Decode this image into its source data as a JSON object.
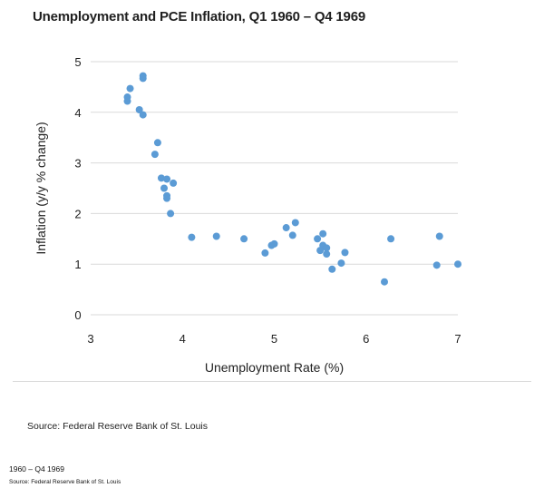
{
  "title": "Unemployment and PCE Inflation, Q1 1960 – Q4 1969",
  "source_text": "Source:  Federal Reserve Bank of St. Louis",
  "footer": {
    "range": "1960 – Q4 1969",
    "source": "Source:  Federal Reserve Bank of St. Louis"
  },
  "colors": {
    "marker": "#5b9bd5",
    "grid": "#d9d9d9"
  },
  "chart_data": {
    "type": "scatter",
    "title": "Unemployment and PCE Inflation, Q1 1960 – Q4 1969",
    "xlabel": "Unemployment Rate (%)",
    "ylabel": "Inflation (y/y % change)",
    "xlim": [
      3,
      7
    ],
    "ylim": [
      0,
      5
    ],
    "xticks": [
      "3",
      "4",
      "5",
      "6",
      "7"
    ],
    "yticks": [
      "0",
      "1",
      "2",
      "3",
      "4",
      "5"
    ],
    "grid": "horizontal",
    "points": [
      {
        "x": 3.4,
        "y": 4.3
      },
      {
        "x": 3.4,
        "y": 4.22
      },
      {
        "x": 3.43,
        "y": 4.47
      },
      {
        "x": 3.57,
        "y": 4.72
      },
      {
        "x": 3.57,
        "y": 4.67
      },
      {
        "x": 3.53,
        "y": 4.05
      },
      {
        "x": 3.57,
        "y": 3.95
      },
      {
        "x": 3.73,
        "y": 3.4
      },
      {
        "x": 3.7,
        "y": 3.17
      },
      {
        "x": 3.77,
        "y": 2.7
      },
      {
        "x": 3.83,
        "y": 2.68
      },
      {
        "x": 3.9,
        "y": 2.6
      },
      {
        "x": 3.8,
        "y": 2.5
      },
      {
        "x": 3.83,
        "y": 2.35
      },
      {
        "x": 3.83,
        "y": 2.3
      },
      {
        "x": 3.87,
        "y": 2.0
      },
      {
        "x": 4.1,
        "y": 1.53
      },
      {
        "x": 4.37,
        "y": 1.55
      },
      {
        "x": 4.67,
        "y": 1.5
      },
      {
        "x": 4.9,
        "y": 1.22
      },
      {
        "x": 4.97,
        "y": 1.37
      },
      {
        "x": 5.0,
        "y": 1.4
      },
      {
        "x": 5.13,
        "y": 1.72
      },
      {
        "x": 5.23,
        "y": 1.82
      },
      {
        "x": 5.2,
        "y": 1.57
      },
      {
        "x": 5.47,
        "y": 1.5
      },
      {
        "x": 5.53,
        "y": 1.6
      },
      {
        "x": 5.53,
        "y": 1.37
      },
      {
        "x": 5.57,
        "y": 1.32
      },
      {
        "x": 5.5,
        "y": 1.27
      },
      {
        "x": 5.57,
        "y": 1.2
      },
      {
        "x": 5.77,
        "y": 1.23
      },
      {
        "x": 5.73,
        "y": 1.02
      },
      {
        "x": 5.63,
        "y": 0.9
      },
      {
        "x": 6.2,
        "y": 0.65
      },
      {
        "x": 6.27,
        "y": 1.5
      },
      {
        "x": 6.8,
        "y": 1.55
      },
      {
        "x": 6.77,
        "y": 0.98
      },
      {
        "x": 7.0,
        "y": 1.0
      }
    ]
  }
}
